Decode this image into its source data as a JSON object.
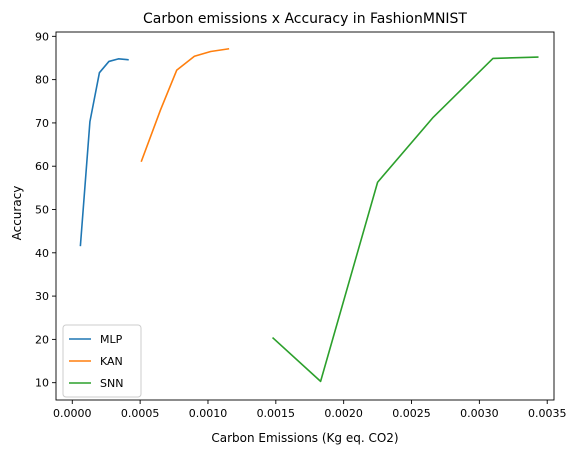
{
  "chart_data": {
    "type": "line",
    "title": "Carbon emissions x Accuracy in FashionMNIST",
    "xlabel": "Carbon Emissions (Kg eq. CO2)",
    "ylabel": "Accuracy",
    "xlim": [
      -0.00012,
      0.00355
    ],
    "ylim": [
      6,
      91
    ],
    "xticks": [
      0.0,
      0.0005,
      0.001,
      0.0015,
      0.002,
      0.0025,
      0.003,
      0.0035
    ],
    "xtick_labels": [
      "0.0000",
      "0.0005",
      "0.0010",
      "0.0015",
      "0.0020",
      "0.0025",
      "0.0030",
      "0.0035"
    ],
    "yticks": [
      10,
      20,
      30,
      40,
      50,
      60,
      70,
      80,
      90
    ],
    "ytick_labels": [
      "10",
      "20",
      "30",
      "40",
      "50",
      "60",
      "70",
      "80",
      "90"
    ],
    "grid": false,
    "legend_position": "lower-left",
    "series": [
      {
        "name": "MLP",
        "color": "#1f77b4",
        "points": [
          [
            6e-05,
            41.7
          ],
          [
            0.00013,
            70.3
          ],
          [
            0.0002,
            81.6
          ],
          [
            0.00027,
            84.2
          ],
          [
            0.00034,
            84.8
          ],
          [
            0.00041,
            84.6
          ]
        ]
      },
      {
        "name": "KAN",
        "color": "#ff7f0e",
        "points": [
          [
            0.00051,
            61.2
          ],
          [
            0.00065,
            73.0
          ],
          [
            0.00077,
            82.2
          ],
          [
            0.0009,
            85.4
          ],
          [
            0.00102,
            86.5
          ],
          [
            0.00115,
            87.1
          ]
        ]
      },
      {
        "name": "SNN",
        "color": "#2ca02c",
        "points": [
          [
            0.00148,
            20.3
          ],
          [
            0.00183,
            10.3
          ],
          [
            0.00225,
            56.3
          ],
          [
            0.00266,
            71.3
          ],
          [
            0.0031,
            84.9
          ],
          [
            0.00343,
            85.2
          ]
        ]
      }
    ]
  }
}
